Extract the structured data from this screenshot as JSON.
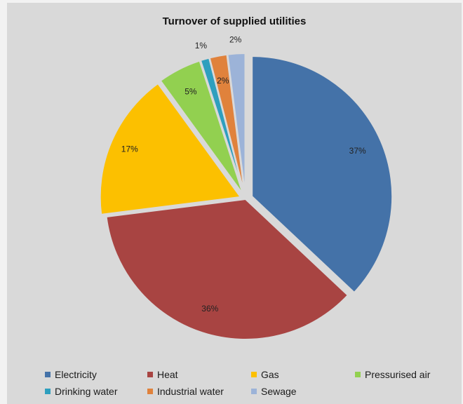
{
  "chart_data": {
    "type": "pie",
    "title": "Turnover of supplied utilities",
    "categories": [
      "Electricity",
      "Heat",
      "Gas",
      "Pressurised air",
      "Drinking water",
      "Industrial water",
      "Sewage"
    ],
    "values": [
      37,
      36,
      17,
      5,
      1,
      2,
      2
    ],
    "labels": [
      "37%",
      "36%",
      "17%",
      "5%",
      "1%",
      "2%",
      "2%"
    ],
    "colors": [
      "#4472a8",
      "#a84442",
      "#fcc000",
      "#92d050",
      "#2e9fbe",
      "#e0823c",
      "#9cb3d8"
    ],
    "legend_position": "bottom"
  }
}
